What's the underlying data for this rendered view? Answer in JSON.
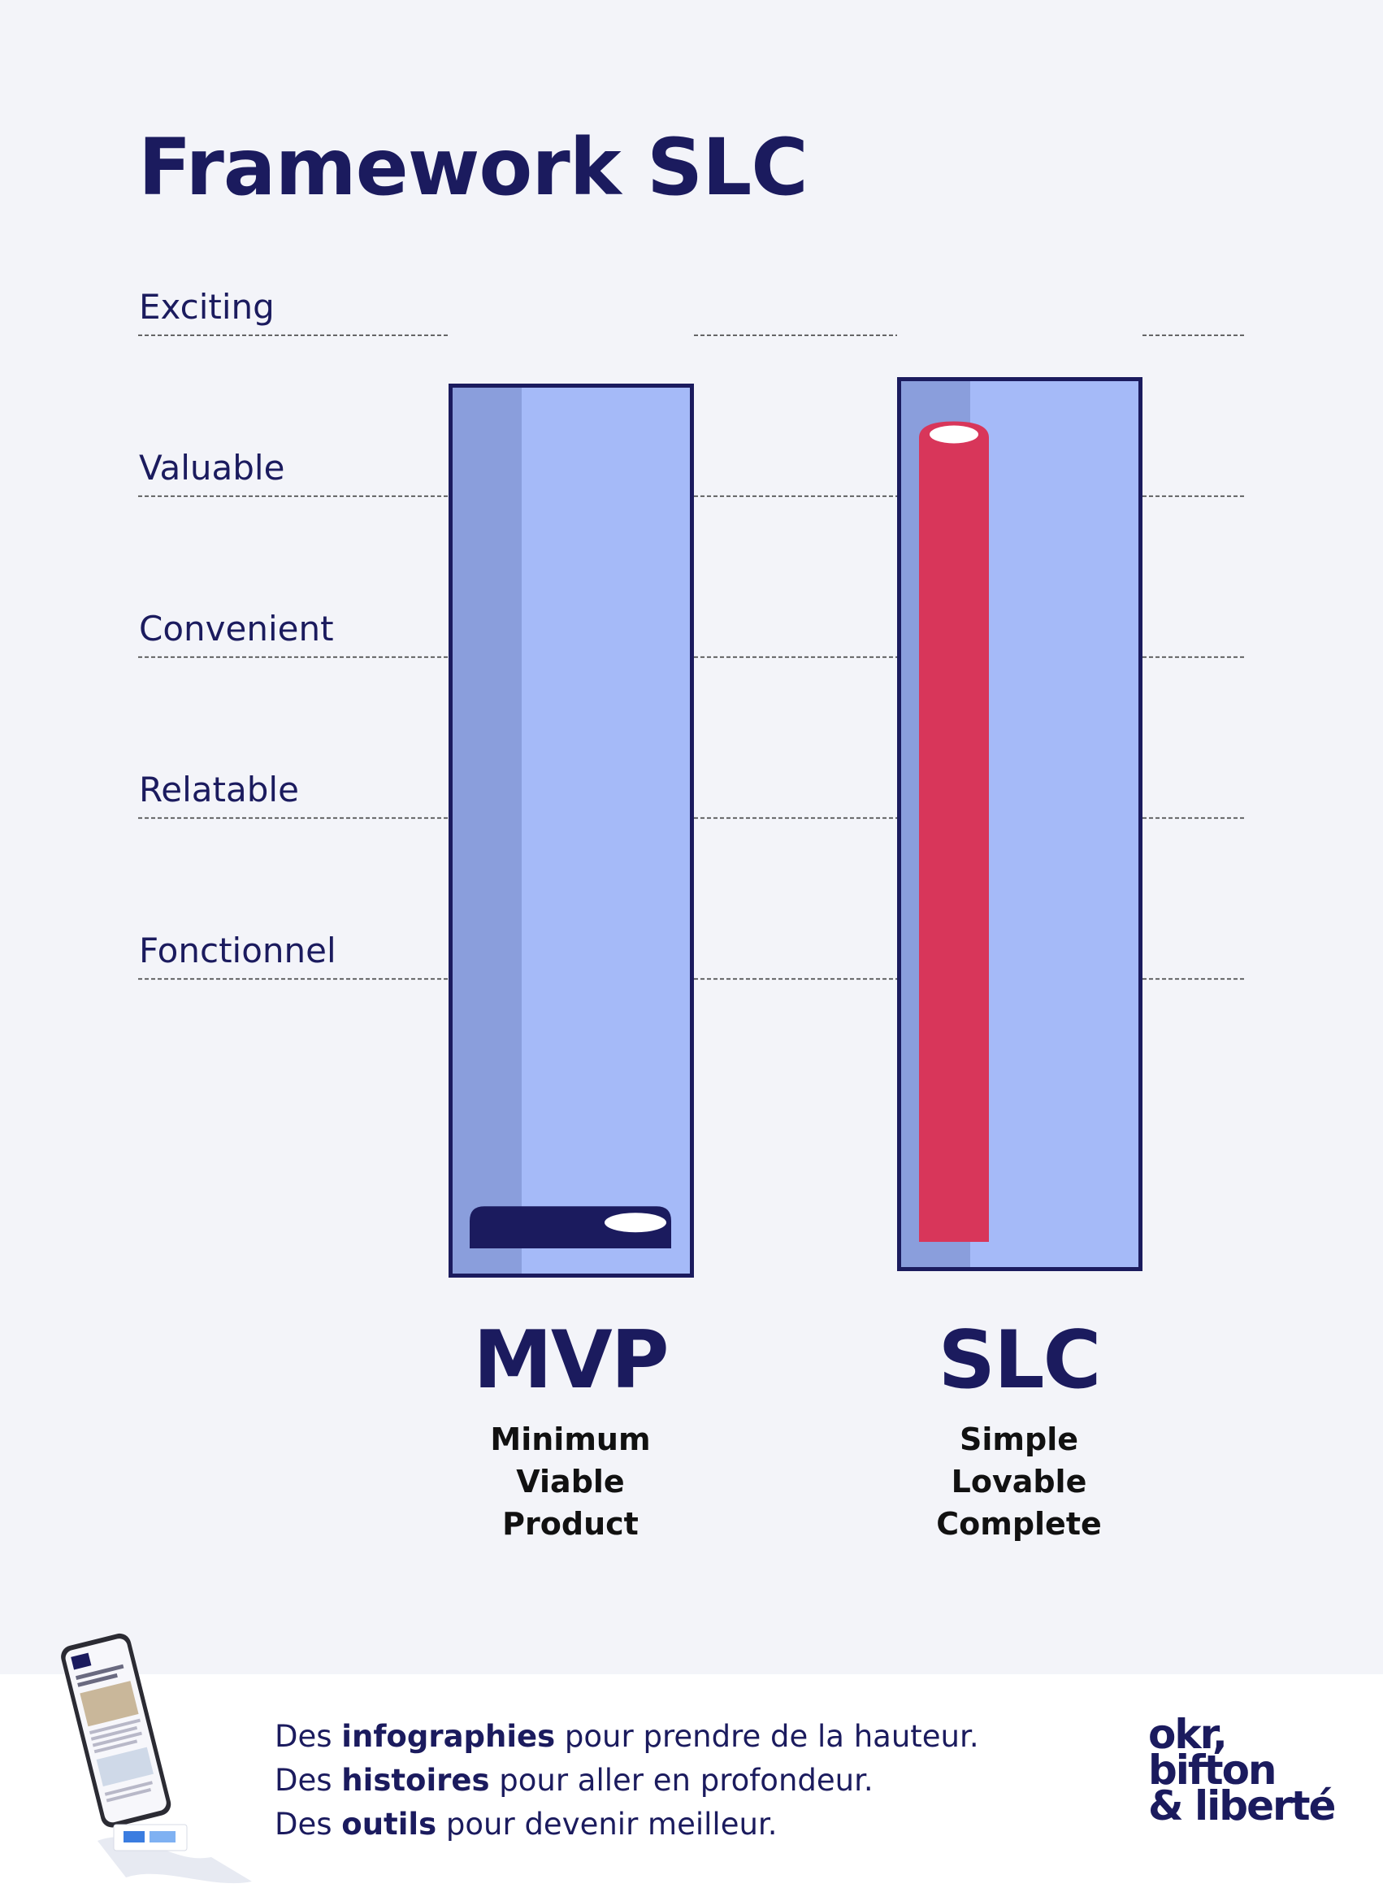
{
  "page": {
    "title": "Framework SLC"
  },
  "levels": [
    "Fonctionnel",
    "Relatable",
    "Convenient",
    "Valuable",
    "Exciting"
  ],
  "chart_data": {
    "type": "bar",
    "categories": [
      "MVP",
      "SLC"
    ],
    "level_labels": [
      "Fonctionnel",
      "Relatable",
      "Convenient",
      "Valuable",
      "Exciting"
    ],
    "series": [
      {
        "values": [
          0.1,
          5.65
        ]
      }
    ],
    "ylim": [
      -0.2,
      5.85
    ],
    "grid": true
  },
  "columns": [
    {
      "abbr": "MVP",
      "line1": "Minimum",
      "line2": "Viable",
      "line3": "Product",
      "fill_color": "#1b1b5e"
    },
    {
      "abbr": "SLC",
      "line1": "Simple",
      "line2": "Lovable",
      "line3": "Complete",
      "fill_color": "#d8365a"
    }
  ],
  "colors": {
    "navy": "#1b1b5e",
    "tube_light": "#a5baf8",
    "tube_shade": "#8a9edc",
    "accent_red": "#d8365a"
  },
  "footer": {
    "line1": {
      "a": "Des ",
      "b": "infographies",
      "c": " pour prendre de la hauteur."
    },
    "line2": {
      "a": "Des ",
      "b": "histoires",
      "c": " pour aller en profondeur."
    },
    "line3": {
      "a": "Des ",
      "b": "outils",
      "c": " pour devenir meilleur."
    },
    "brand": {
      "l1": "okr,",
      "l2": "bifton",
      "l3": "& liberté"
    }
  }
}
